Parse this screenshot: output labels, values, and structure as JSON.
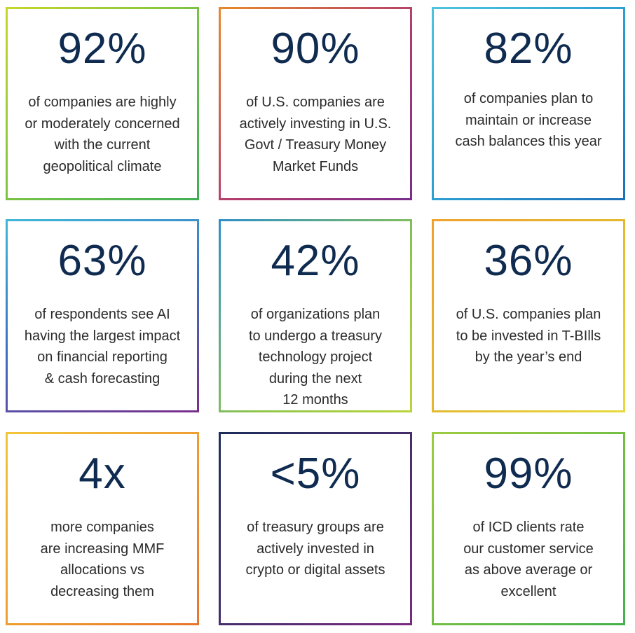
{
  "stats": [
    {
      "value": "92%",
      "text": "of companies are highly\nor moderately concerned\nwith the current\ngeopolitical climate"
    },
    {
      "value": "90%",
      "text": "of U.S. companies are\nactively investing in U.S.\nGovt / Treasury Money\nMarket Funds"
    },
    {
      "value": "82%",
      "text": "of companies plan to\nmaintain or increase\ncash balances this year"
    },
    {
      "value": "63%",
      "text": "of respondents see AI\nhaving the largest impact\non financial reporting\n& cash forecasting"
    },
    {
      "value": "42%",
      "text": "of organizations plan\nto undergo a treasury\ntechnology project\nduring the next\n12 months"
    },
    {
      "value": "36%",
      "text": "of U.S. companies plan\nto be invested in T-BIlls\nby the year’s end"
    },
    {
      "value": "4x",
      "text": "more companies\nare increasing MMF\nallocations vs\ndecreasing them"
    },
    {
      "value": "<5%",
      "text": "of treasury groups are\nactively invested in\ncrypto or digital assets"
    },
    {
      "value": "99%",
      "text": "of ICD clients rate\nour customer service\nas above average or\nexcellent"
    }
  ],
  "colors": {
    "stat_text": "#0f2b50",
    "body_text": "#2b2b2b"
  }
}
